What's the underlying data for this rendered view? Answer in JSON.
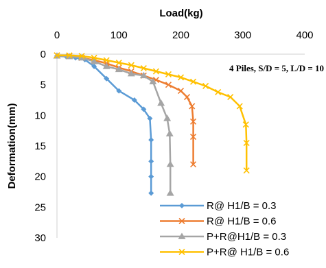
{
  "chart_data": {
    "type": "line",
    "title": "",
    "xlabel": "Load(kg)",
    "ylabel": "Deformation(mm)",
    "x_axis_position": "top",
    "y_axis_reversed": true,
    "xlim": [
      0,
      400
    ],
    "ylim": [
      0,
      30
    ],
    "xticks": [
      0,
      100,
      200,
      300,
      400
    ],
    "yticks": [
      0,
      5,
      10,
      15,
      20,
      25,
      30
    ],
    "grid": false,
    "legend_position": "bottom-right",
    "annotation": "4 Piles, S/D = 5, L/D = 10",
    "series": [
      {
        "name": "R@ H1/B = 0.3",
        "color": "#5B9BD5",
        "marker": "diamond",
        "points": [
          [
            0,
            0.3
          ],
          [
            15,
            0.4
          ],
          [
            30,
            0.6
          ],
          [
            45,
            0.9
          ],
          [
            60,
            2.0
          ],
          [
            80,
            4.0
          ],
          [
            100,
            6.0
          ],
          [
            125,
            7.5
          ],
          [
            140,
            9.0
          ],
          [
            150,
            10.5
          ],
          [
            152,
            14.0
          ],
          [
            152,
            17.5
          ],
          [
            152,
            20.0
          ],
          [
            152,
            22.7
          ]
        ]
      },
      {
        "name": "R@ H1/B = 0.6",
        "color": "#ED7D31",
        "marker": "x",
        "points": [
          [
            0,
            0.2
          ],
          [
            20,
            0.3
          ],
          [
            40,
            0.6
          ],
          [
            60,
            1.0
          ],
          [
            80,
            1.5
          ],
          [
            100,
            2.2
          ],
          [
            120,
            2.8
          ],
          [
            140,
            3.5
          ],
          [
            160,
            4.2
          ],
          [
            180,
            5.0
          ],
          [
            200,
            6.0
          ],
          [
            210,
            7.0
          ],
          [
            218,
            8.5
          ],
          [
            220,
            11.0
          ],
          [
            220,
            13.5
          ],
          [
            220,
            18.0
          ]
        ]
      },
      {
        "name": "P+R@H1/B = 0.3",
        "color": "#A5A5A5",
        "marker": "triangle",
        "points": [
          [
            0,
            0.3
          ],
          [
            20,
            0.4
          ],
          [
            40,
            0.6
          ],
          [
            60,
            1.2
          ],
          [
            80,
            2.0
          ],
          [
            100,
            2.5
          ],
          [
            120,
            3.2
          ],
          [
            140,
            3.5
          ],
          [
            155,
            4.5
          ],
          [
            168,
            8.0
          ],
          [
            178,
            10.5
          ],
          [
            182,
            13.0
          ],
          [
            183,
            18.0
          ],
          [
            183,
            22.7
          ]
        ]
      },
      {
        "name": "P+R@ H1/B = 0.6",
        "color": "#FFC000",
        "marker": "x",
        "points": [
          [
            0,
            0.2
          ],
          [
            20,
            0.2
          ],
          [
            40,
            0.3
          ],
          [
            60,
            0.6
          ],
          [
            80,
            1.0
          ],
          [
            100,
            1.4
          ],
          [
            120,
            1.8
          ],
          [
            140,
            2.3
          ],
          [
            160,
            2.8
          ],
          [
            180,
            3.3
          ],
          [
            200,
            3.8
          ],
          [
            220,
            4.5
          ],
          [
            240,
            5.2
          ],
          [
            260,
            6.2
          ],
          [
            280,
            7.0
          ],
          [
            295,
            8.5
          ],
          [
            305,
            11.5
          ],
          [
            306,
            14.5
          ],
          [
            306,
            19.0
          ]
        ]
      }
    ]
  }
}
